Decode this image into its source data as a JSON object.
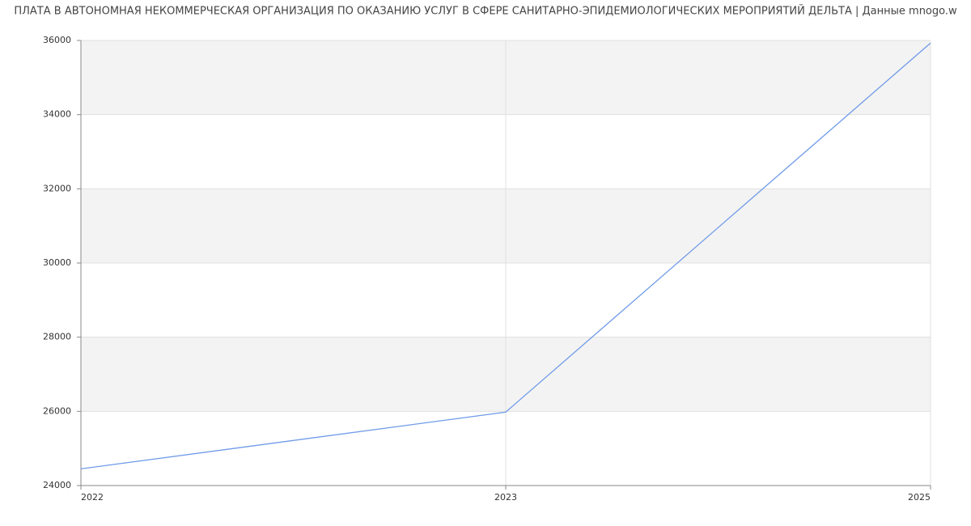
{
  "chart_data": {
    "type": "line",
    "title": "ПЛАТА В АВТОНОМНАЯ НЕКОММЕРЧЕСКАЯ ОРГАНИЗАЦИЯ ПО ОКАЗАНИЮ УСЛУГ В СФЕРЕ САНИТАРНО-ЭПИДЕМИОЛОГИЧЕСКИХ МЕРОПРИЯТИЙ ДЕЛЬТА | Данные mnogo.w",
    "categories": [
      "2022",
      "2023",
      "2025"
    ],
    "values": [
      24450,
      25980,
      35930
    ],
    "color": "#6f9be8",
    "ylim": [
      24000,
      36000
    ],
    "yticks": [
      24000,
      26000,
      28000,
      30000,
      32000,
      34000,
      36000
    ],
    "grid": true
  }
}
